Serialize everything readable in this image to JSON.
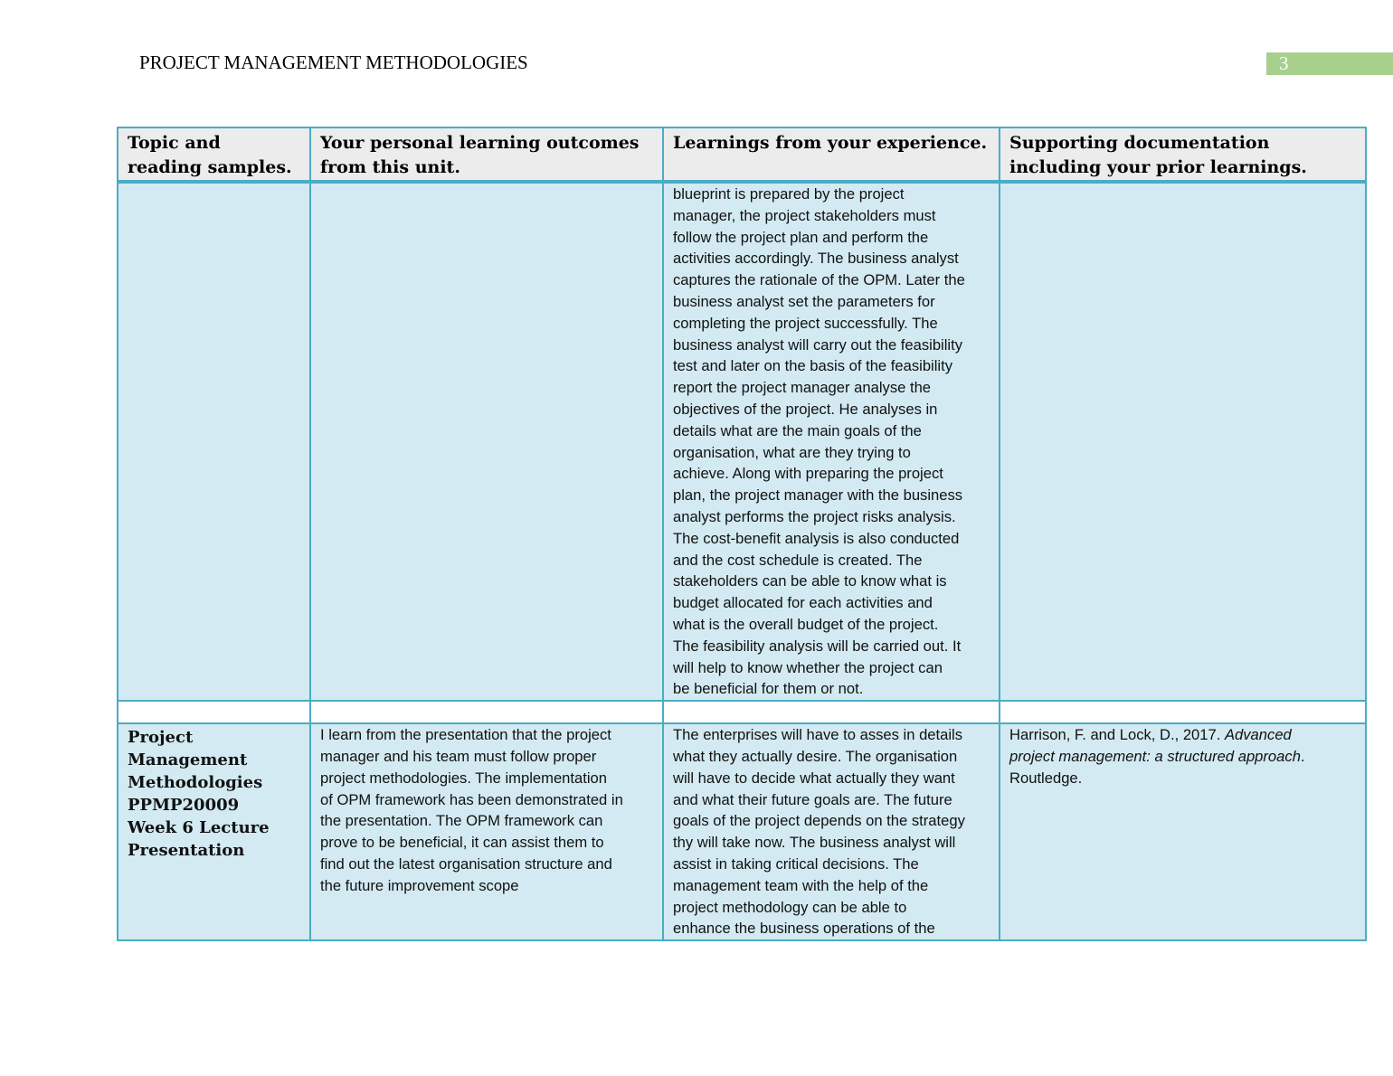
{
  "header": {
    "title": "PROJECT MANAGEMENT METHODOLOGIES",
    "page_number": "3",
    "page_number_bg": "#a8d08d"
  },
  "table": {
    "border_color": "#4bacc6",
    "columns": [
      "Topic and reading samples.",
      "Your personal learning outcomes from this unit.",
      "Learnings from your experience.",
      "Supporting documentation including your prior learnings."
    ],
    "row1": {
      "experience_lines": [
        "blueprint is prepared by the project",
        "manager, the project stakeholders must",
        "follow the project plan and perform the",
        "activities accordingly. The business analyst",
        "captures the rationale of the OPM. Later the",
        "business analyst set the parameters for",
        "completing the project successfully. The",
        "business analyst will carry out the feasibility",
        "test and later on the basis of the feasibility",
        "report the project manager analyse the",
        "objectives of the project. He analyses in",
        "details what are the main goals of the",
        "organisation, what are they trying to",
        "achieve. Along with preparing the project",
        "plan, the project manager with the business",
        "analyst performs the project risks analysis.",
        "The cost-benefit analysis is also conducted",
        "and the cost schedule is created. The",
        "stakeholders can be able to know what is",
        "budget allocated for each activities and",
        "what is the overall budget of the project.",
        "The feasibility analysis will be carried out. It",
        "will help to know whether the project can",
        "be beneficial for them or not."
      ]
    },
    "row3": {
      "topic_lines": [
        "Project",
        "Management",
        "Methodologies",
        "PPMP20009",
        "Week 6 Lecture",
        "Presentation"
      ],
      "outcome_lines": [
        "I learn from the presentation that the project",
        "manager and his team must follow proper",
        "project methodologies. The implementation",
        "of OPM framework has been demonstrated in",
        "the presentation. The OPM framework can",
        "prove to be beneficial, it can assist them to",
        "find out the latest organisation structure and",
        "the future improvement scope"
      ],
      "experience_lines": [
        "The enterprises will have to asses in details",
        "what they actually desire. The organisation",
        "will have to decide what actually they want",
        "and what their future goals are. The future",
        "goals of the project depends on the strategy",
        "thy will take now. The business analyst will",
        "assist in taking critical decisions. The",
        "management team with the help of the",
        "project methodology can be able to",
        "enhance the business operations of the"
      ],
      "reference": {
        "authors": "Harrison, F. and Lock, D., 2017. ",
        "title_line1": "Advanced",
        "title_line2": "project management: a structured approach",
        "after_title": ".",
        "publisher": "Routledge."
      }
    }
  }
}
